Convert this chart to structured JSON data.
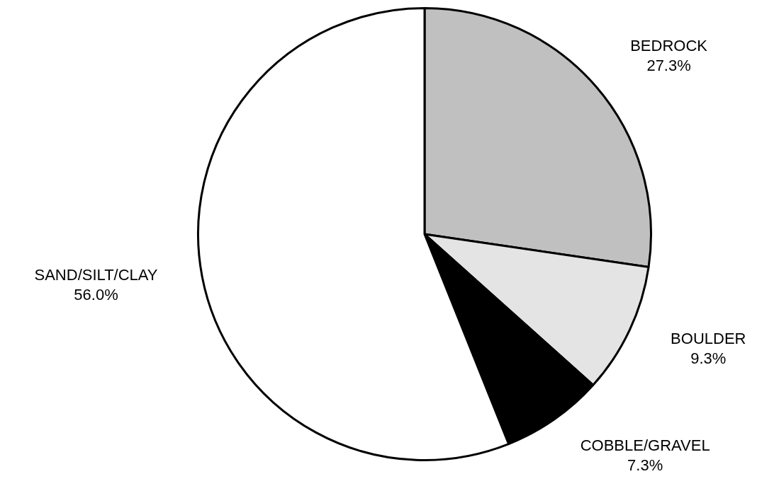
{
  "chart_data": {
    "type": "pie",
    "categories": [
      "BEDROCK",
      "BOULDER",
      "COBBLE/GRAVEL",
      "SAND/SILT/CLAY"
    ],
    "values": [
      27.3,
      9.3,
      7.3,
      56.0
    ],
    "value_labels": [
      "27.3%",
      "9.3%",
      "7.3%",
      "56.0%"
    ],
    "colors": [
      "#c0c0c0",
      "#e4e4e4",
      "#000000",
      "#ffffff"
    ],
    "legend": false
  }
}
